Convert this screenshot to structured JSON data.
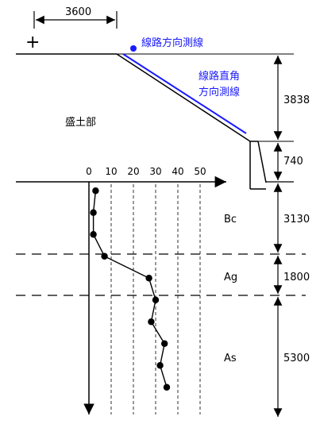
{
  "embankment_label": "盛土部",
  "survey_labels": {
    "track_direction": "線路方向測線",
    "perpendicular_line1": "線路直角",
    "perpendicular_line2": "方向測線"
  },
  "dimensions": {
    "offset": "3600",
    "embankment_height": "3838",
    "footing": "740",
    "bc": "3130",
    "ag": "1800",
    "as": "5300"
  },
  "layers": [
    "Bc",
    "Ag",
    "As"
  ],
  "origin_mark": "+",
  "colors": {
    "accent": "#1a1aff",
    "line": "#000000"
  },
  "chart_data": {
    "type": "line",
    "x_axis_ticks": [
      "0",
      "10",
      "20",
      "30",
      "40",
      "50"
    ],
    "xlim": [
      0,
      50
    ],
    "points": [
      {
        "n": 3,
        "depth": 0.3
      },
      {
        "n": 2,
        "depth": 1.3
      },
      {
        "n": 2,
        "depth": 2.3
      },
      {
        "n": 7,
        "depth": 3.3
      },
      {
        "n": 27,
        "depth": 4.3
      },
      {
        "n": 30,
        "depth": 5.3
      },
      {
        "n": 28,
        "depth": 6.3
      },
      {
        "n": 34,
        "depth": 7.3
      },
      {
        "n": 32,
        "depth": 8.3
      },
      {
        "n": 35,
        "depth": 9.3
      }
    ]
  }
}
